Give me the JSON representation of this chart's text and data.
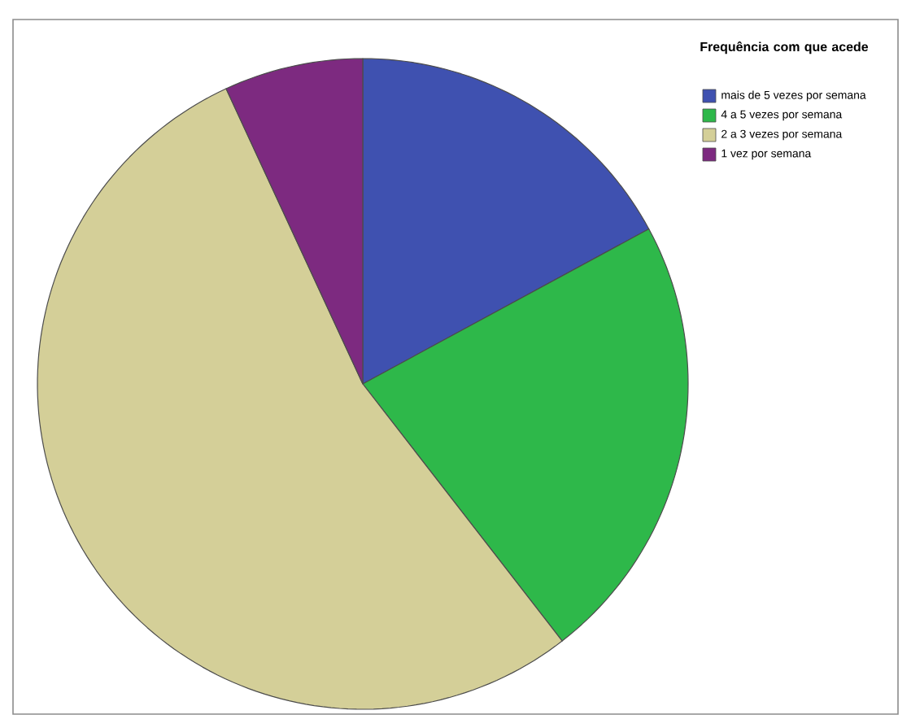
{
  "chart_data": {
    "type": "pie",
    "legend_title": "Frequência com que acede",
    "categories": [
      "mais de 5 vezes por semana",
      "4 a 5 vezes por semana",
      "2 a 3 vezes por semana",
      "1 vez por semana"
    ],
    "values": [
      17.1,
      22.4,
      53.6,
      6.9
    ],
    "colors": [
      "#3f51b0",
      "#2eb84a",
      "#d4cf98",
      "#7d2a80"
    ],
    "legend": "top right"
  }
}
